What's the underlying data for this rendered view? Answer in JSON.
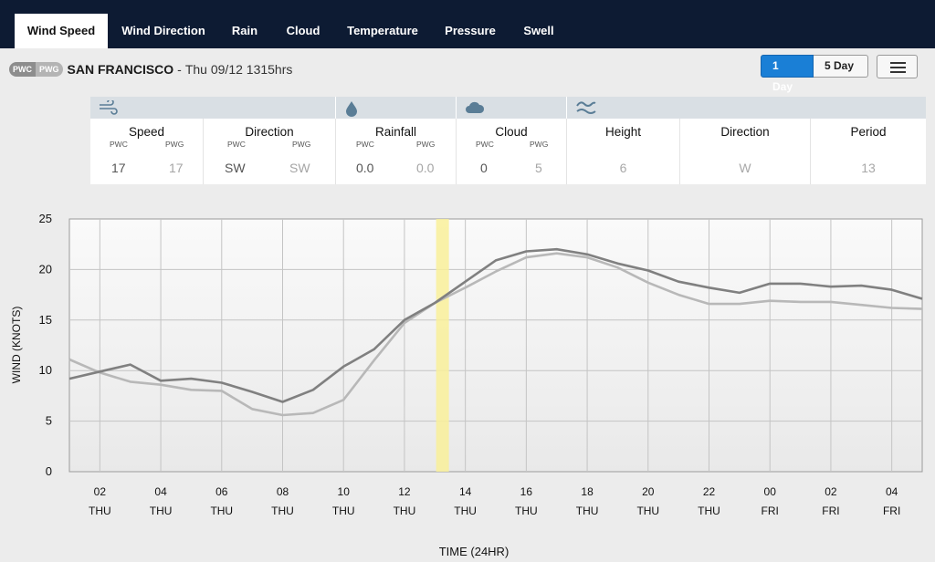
{
  "nav": {
    "tabs": [
      {
        "label": "Wind Speed"
      },
      {
        "label": "Wind Direction"
      },
      {
        "label": "Rain"
      },
      {
        "label": "Cloud"
      },
      {
        "label": "Temperature"
      },
      {
        "label": "Pressure"
      },
      {
        "label": "Swell"
      }
    ],
    "active_tab": "Wind Speed"
  },
  "location": {
    "badges": [
      "PWC",
      "PWG"
    ],
    "name": "SAN FRANCISCO",
    "separator": "-",
    "datetime": "Thu 09/12 1315hrs"
  },
  "range": {
    "one_day": "1 Day",
    "five_day": "5 Day",
    "selected": "1 Day"
  },
  "menu": {
    "icon": "hamburger-icon"
  },
  "summary": {
    "icons": [
      "wind-icon",
      "raindrop-icon",
      "cloud-icon",
      "swell-icon"
    ],
    "speed": {
      "title": "Speed",
      "sub": [
        "PWC",
        "PWG"
      ],
      "values": [
        "17",
        "17"
      ]
    },
    "direction": {
      "title": "Direction",
      "sub": [
        "PWC",
        "PWG"
      ],
      "values": [
        "SW",
        "SW"
      ]
    },
    "rainfall": {
      "title": "Rainfall",
      "sub": [
        "PWC",
        "PWG"
      ],
      "values": [
        "0.0",
        "0.0"
      ]
    },
    "cloud": {
      "title": "Cloud",
      "sub": [
        "PWC",
        "PWG"
      ],
      "values": [
        "0",
        "5"
      ]
    },
    "height": {
      "title": "Height",
      "value": "6"
    },
    "swell_direction": {
      "title": "Direction",
      "value": "W"
    },
    "period": {
      "title": "Period",
      "value": "13"
    }
  },
  "colors": {
    "nav_bg": "#0d1b33",
    "accent": "#1a7fd6",
    "highlight": "#f9f09a"
  },
  "chart_data": {
    "type": "line",
    "ylabel": "WIND (KNOTS)",
    "xlabel": "TIME (24HR)",
    "ylim": [
      0,
      25
    ],
    "yticks": [
      0,
      5,
      10,
      15,
      20,
      25
    ],
    "xlim": [
      1,
      29
    ],
    "xticks": [
      {
        "t": 2,
        "hour": "02",
        "day": "THU"
      },
      {
        "t": 4,
        "hour": "04",
        "day": "THU"
      },
      {
        "t": 6,
        "hour": "06",
        "day": "THU"
      },
      {
        "t": 8,
        "hour": "08",
        "day": "THU"
      },
      {
        "t": 10,
        "hour": "10",
        "day": "THU"
      },
      {
        "t": 12,
        "hour": "12",
        "day": "THU"
      },
      {
        "t": 14,
        "hour": "14",
        "day": "THU"
      },
      {
        "t": 16,
        "hour": "16",
        "day": "THU"
      },
      {
        "t": 18,
        "hour": "18",
        "day": "THU"
      },
      {
        "t": 20,
        "hour": "20",
        "day": "THU"
      },
      {
        "t": 22,
        "hour": "22",
        "day": "THU"
      },
      {
        "t": 24,
        "hour": "00",
        "day": "FRI"
      },
      {
        "t": 26,
        "hour": "02",
        "day": "FRI"
      },
      {
        "t": 28,
        "hour": "04",
        "day": "FRI"
      }
    ],
    "grid": true,
    "current_time_marker": 13.25,
    "series": [
      {
        "color": "#808080",
        "x": [
          1,
          2,
          3,
          4,
          5,
          6,
          7,
          8,
          9,
          10,
          11,
          12,
          13,
          14,
          15,
          16,
          17,
          18,
          19,
          20,
          21,
          22,
          23,
          24,
          25,
          26,
          27,
          28,
          29
        ],
        "values": [
          9.2,
          9.9,
          10.6,
          9.0,
          9.2,
          8.8,
          7.9,
          6.9,
          8.1,
          10.4,
          12.1,
          15.0,
          16.7,
          18.8,
          20.9,
          21.8,
          22.0,
          21.5,
          20.6,
          19.9,
          18.8,
          18.2,
          17.7,
          18.6,
          18.6,
          18.3,
          18.4,
          18.0,
          17.1
        ]
      },
      {
        "color": "#b8b8b8",
        "x": [
          1,
          2,
          3,
          4,
          5,
          6,
          7,
          8,
          9,
          10,
          11,
          12,
          13,
          14,
          15,
          16,
          17,
          18,
          19,
          20,
          21,
          22,
          23,
          24,
          25,
          26,
          27,
          28,
          29
        ],
        "values": [
          11.1,
          9.8,
          8.9,
          8.6,
          8.1,
          8.0,
          6.2,
          5.6,
          5.8,
          7.1,
          11.0,
          14.7,
          16.7,
          18.2,
          19.8,
          21.2,
          21.6,
          21.2,
          20.2,
          18.7,
          17.5,
          16.6,
          16.6,
          16.9,
          16.8,
          16.8,
          16.5,
          16.2,
          16.1
        ]
      }
    ]
  }
}
